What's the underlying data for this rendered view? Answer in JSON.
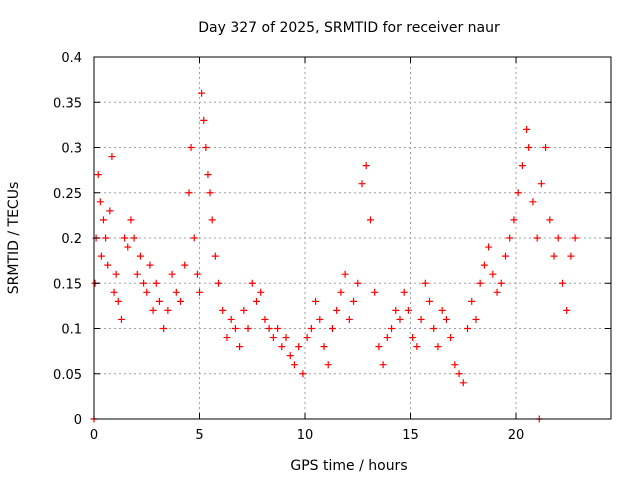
{
  "chart_data": {
    "type": "scatter",
    "title": "Day 327 of 2025, SRMTID for receiver naur",
    "xlabel": "GPS time / hours",
    "ylabel": "SRMTID / TECUs",
    "xlim": [
      0,
      24.5
    ],
    "ylim": [
      0,
      0.4
    ],
    "grid": true,
    "legend": "none",
    "marker": "+",
    "colors": {
      "series": "#ff0000",
      "axis": "#000000",
      "grid": "#a0a0a0"
    },
    "x_ticks": [
      0,
      5,
      10,
      15,
      20
    ],
    "x_tick_labels": [
      "0",
      "5",
      "10",
      "15",
      "20"
    ],
    "y_ticks": [
      0,
      0.05,
      0.1,
      0.15,
      0.2,
      0.25,
      0.3,
      0.35,
      0.4
    ],
    "y_tick_labels": [
      "0",
      "0.05",
      "0.1",
      "0.15",
      "0.2",
      "0.25",
      "0.3",
      "0.35",
      "0.4"
    ],
    "series": [
      {
        "name": "SRMTID",
        "x": [
          0.05,
          0.1,
          0.2,
          0.3,
          0.35,
          0.45,
          0.55,
          0.65,
          0.75,
          0.85,
          0.95,
          1.05,
          1.15,
          1.3,
          1.45,
          1.6,
          1.75,
          1.9,
          2.05,
          2.2,
          2.35,
          2.5,
          2.65,
          2.8,
          2.95,
          3.1,
          3.3,
          3.5,
          3.7,
          3.9,
          4.1,
          4.3,
          4.5,
          4.6,
          4.75,
          4.9,
          5.0,
          5.1,
          5.2,
          5.3,
          5.4,
          5.5,
          5.6,
          5.75,
          5.9,
          6.1,
          6.3,
          6.5,
          6.7,
          6.9,
          7.1,
          7.3,
          7.5,
          7.7,
          7.9,
          8.1,
          8.3,
          8.5,
          8.7,
          8.9,
          9.1,
          9.3,
          9.5,
          9.7,
          9.9,
          10.1,
          10.3,
          10.5,
          10.7,
          10.9,
          11.1,
          11.3,
          11.5,
          11.7,
          11.9,
          12.1,
          12.3,
          12.5,
          12.7,
          12.9,
          13.1,
          13.3,
          13.5,
          13.7,
          13.9,
          14.1,
          14.3,
          14.5,
          14.7,
          14.9,
          15.1,
          15.3,
          15.5,
          15.7,
          15.9,
          16.1,
          16.3,
          16.5,
          16.7,
          16.9,
          17.1,
          17.3,
          17.5,
          17.7,
          17.9,
          18.1,
          18.3,
          18.5,
          18.7,
          18.9,
          19.1,
          19.3,
          19.5,
          19.7,
          19.9,
          20.1,
          20.3,
          20.5,
          20.6,
          20.8,
          21.0,
          21.2,
          21.4,
          21.6,
          21.8,
          22.0,
          22.2,
          22.4,
          22.6,
          22.8,
          0.0,
          21.1
        ],
        "y": [
          0.15,
          0.2,
          0.27,
          0.24,
          0.18,
          0.22,
          0.2,
          0.17,
          0.23,
          0.29,
          0.14,
          0.16,
          0.13,
          0.11,
          0.2,
          0.19,
          0.22,
          0.2,
          0.16,
          0.18,
          0.15,
          0.14,
          0.17,
          0.12,
          0.15,
          0.13,
          0.1,
          0.12,
          0.16,
          0.14,
          0.13,
          0.17,
          0.25,
          0.3,
          0.2,
          0.16,
          0.14,
          0.36,
          0.33,
          0.3,
          0.27,
          0.25,
          0.22,
          0.18,
          0.15,
          0.12,
          0.09,
          0.11,
          0.1,
          0.08,
          0.12,
          0.1,
          0.15,
          0.13,
          0.14,
          0.11,
          0.1,
          0.09,
          0.1,
          0.08,
          0.09,
          0.07,
          0.06,
          0.08,
          0.05,
          0.09,
          0.1,
          0.13,
          0.11,
          0.08,
          0.06,
          0.1,
          0.12,
          0.14,
          0.16,
          0.11,
          0.13,
          0.15,
          0.26,
          0.28,
          0.22,
          0.14,
          0.08,
          0.06,
          0.09,
          0.1,
          0.12,
          0.11,
          0.14,
          0.12,
          0.09,
          0.08,
          0.11,
          0.15,
          0.13,
          0.1,
          0.08,
          0.12,
          0.11,
          0.09,
          0.06,
          0.05,
          0.04,
          0.1,
          0.13,
          0.11,
          0.15,
          0.17,
          0.19,
          0.16,
          0.14,
          0.15,
          0.18,
          0.2,
          0.22,
          0.25,
          0.28,
          0.32,
          0.3,
          0.24,
          0.2,
          0.26,
          0.3,
          0.22,
          0.18,
          0.2,
          0.15,
          0.12,
          0.18,
          0.2,
          0.0,
          0.0
        ]
      }
    ]
  }
}
